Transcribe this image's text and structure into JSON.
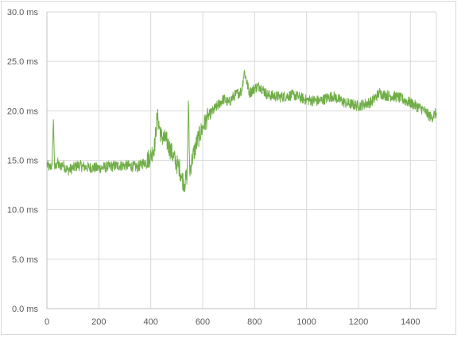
{
  "chart_data": {
    "type": "line",
    "title": "",
    "xlabel": "",
    "ylabel": "",
    "xlim": [
      0,
      1500
    ],
    "ylim": [
      0,
      30
    ],
    "x_ticks": [
      0,
      200,
      400,
      600,
      800,
      1000,
      1200,
      1400
    ],
    "x_tick_labels": [
      "0",
      "200",
      "400",
      "600",
      "800",
      "1000",
      "1200",
      "1400"
    ],
    "y_ticks": [
      0,
      5,
      10,
      15,
      20,
      25,
      30
    ],
    "y_tick_labels": [
      "0.0 ms",
      "5.0 ms",
      "10.0 ms",
      "15.0 ms",
      "20.0 ms",
      "25.0 ms",
      "30.0 ms"
    ],
    "grid": true,
    "legend": "none",
    "series": [
      {
        "color": "#70ad47",
        "x": [
          0,
          10,
          20,
          25,
          30,
          40,
          50,
          60,
          80,
          100,
          120,
          150,
          200,
          250,
          300,
          350,
          380,
          400,
          415,
          425,
          440,
          460,
          480,
          500,
          510,
          520,
          530,
          540,
          545,
          550,
          560,
          580,
          600,
          620,
          650,
          680,
          700,
          720,
          750,
          760,
          780,
          800,
          820,
          850,
          900,
          950,
          1000,
          1050,
          1100,
          1150,
          1200,
          1250,
          1280,
          1300,
          1350,
          1400,
          1450,
          1480,
          1500
        ],
        "y": [
          14.6,
          14.2,
          14.5,
          19.1,
          14.1,
          14.8,
          14.3,
          14.6,
          14.0,
          14.2,
          14.5,
          14.3,
          14.2,
          14.4,
          14.5,
          14.3,
          14.9,
          15.4,
          16.5,
          19.5,
          17.4,
          17.0,
          15.8,
          14.6,
          14.3,
          13.2,
          12.6,
          13.5,
          21.0,
          13.9,
          15.2,
          17.0,
          18.3,
          19.4,
          20.3,
          21.2,
          20.8,
          21.5,
          22.0,
          24.0,
          21.8,
          22.3,
          22.5,
          21.6,
          21.4,
          21.6,
          21.1,
          21.0,
          21.5,
          20.8,
          20.5,
          20.9,
          21.8,
          21.6,
          21.4,
          20.8,
          20.1,
          19.3,
          19.8
        ]
      }
    ]
  }
}
